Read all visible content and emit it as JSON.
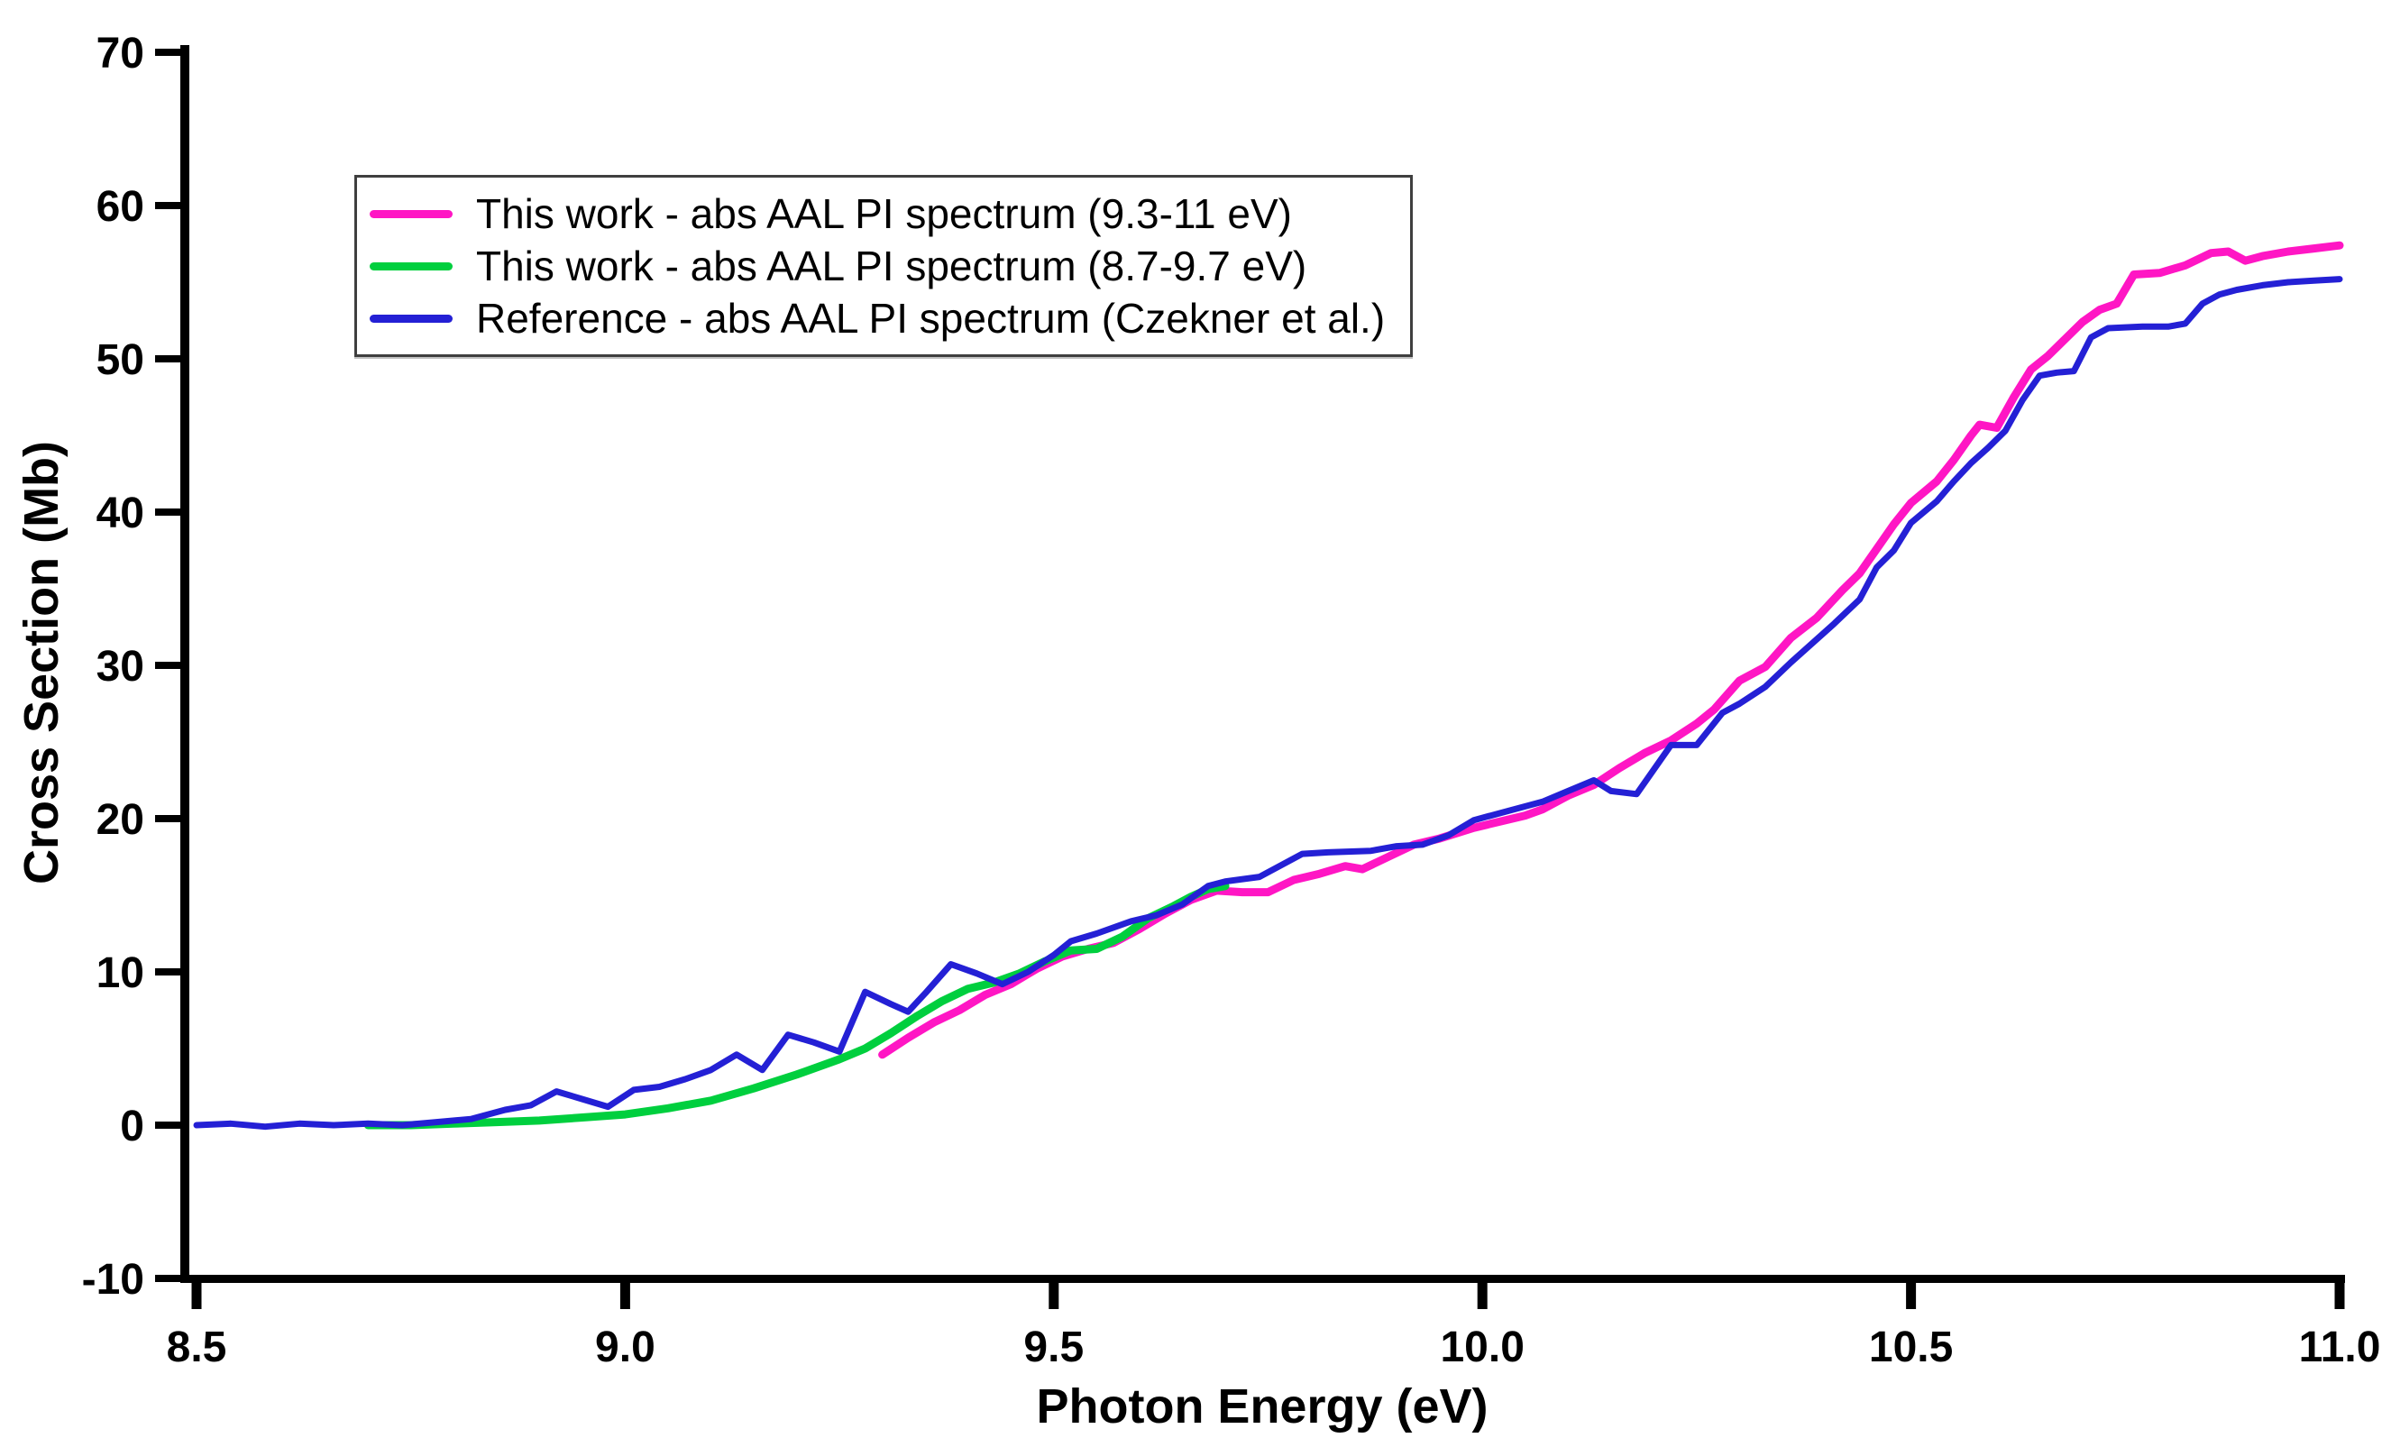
{
  "figure": {
    "background": "#ffffff",
    "axis_color": "#000000"
  },
  "chart_data": {
    "type": "line",
    "title": "",
    "xlabel": "Photon Energy (eV)",
    "ylabel": "Cross Section (Mb)",
    "xlim": [
      8.5,
      11.0
    ],
    "ylim": [
      -10,
      70
    ],
    "xticks": [
      8.5,
      9.0,
      9.5,
      10.0,
      10.5,
      11.0
    ],
    "yticks": [
      -10,
      0,
      10,
      20,
      30,
      40,
      50,
      60,
      70
    ],
    "grid": false,
    "legend_position": "upper-left",
    "series": [
      {
        "name": "This work - abs AAL PI spectrum (9.3-11 eV)",
        "color": "#ff16c4",
        "x": [
          9.3,
          9.33,
          9.36,
          9.39,
          9.42,
          9.45,
          9.48,
          9.51,
          9.54,
          9.57,
          9.6,
          9.63,
          9.66,
          9.69,
          9.72,
          9.75,
          9.78,
          9.81,
          9.84,
          9.86,
          9.89,
          9.92,
          9.95,
          9.99,
          10.02,
          10.05,
          10.07,
          10.1,
          10.13,
          10.16,
          10.19,
          10.22,
          10.25,
          10.27,
          10.3,
          10.33,
          10.36,
          10.39,
          10.42,
          10.44,
          10.46,
          10.48,
          10.5,
          10.53,
          10.55,
          10.57,
          10.58,
          10.6,
          10.62,
          10.64,
          10.66,
          10.68,
          10.7,
          10.72,
          10.74,
          10.76,
          10.79,
          10.82,
          10.85,
          10.87,
          10.89,
          10.91,
          10.94,
          10.97,
          11.0
        ],
        "y": [
          4.6,
          5.7,
          6.7,
          7.5,
          8.5,
          9.2,
          10.2,
          11.0,
          11.5,
          11.9,
          12.8,
          13.8,
          14.7,
          15.3,
          15.2,
          15.2,
          16.0,
          16.4,
          16.9,
          16.7,
          17.5,
          18.3,
          18.7,
          19.4,
          19.8,
          20.2,
          20.6,
          21.5,
          22.2,
          23.3,
          24.3,
          25.1,
          26.2,
          27.1,
          29.0,
          29.9,
          31.8,
          33.1,
          34.9,
          36.0,
          37.6,
          39.2,
          40.6,
          42.0,
          43.4,
          45.0,
          45.7,
          45.5,
          47.5,
          49.3,
          50.2,
          51.3,
          52.4,
          53.2,
          53.6,
          55.5,
          55.6,
          56.1,
          56.9,
          57.0,
          56.4,
          56.7,
          57.0,
          57.2,
          57.4
        ]
      },
      {
        "name": "This work - abs AAL PI spectrum (8.7-9.7 eV)",
        "color": "#00cf3e",
        "x": [
          8.7,
          8.75,
          8.8,
          8.85,
          8.9,
          8.95,
          9.0,
          9.05,
          9.1,
          9.15,
          9.2,
          9.25,
          9.28,
          9.31,
          9.34,
          9.37,
          9.4,
          9.43,
          9.46,
          9.49,
          9.52,
          9.55,
          9.58,
          9.61,
          9.64,
          9.66,
          9.68,
          9.7
        ],
        "y": [
          0.0,
          0.0,
          0.1,
          0.2,
          0.3,
          0.5,
          0.7,
          1.1,
          1.6,
          2.4,
          3.3,
          4.3,
          5.0,
          6.0,
          7.1,
          8.1,
          8.9,
          9.3,
          9.9,
          10.7,
          11.4,
          11.5,
          12.3,
          13.5,
          14.3,
          14.9,
          15.4,
          15.6
        ]
      },
      {
        "name": "Reference - abs AAL PI spectrum (Czekner et al.)",
        "color": "#2420d5",
        "x": [
          8.5,
          8.54,
          8.58,
          8.62,
          8.66,
          8.7,
          8.74,
          8.78,
          8.82,
          8.86,
          8.89,
          8.92,
          8.95,
          8.98,
          9.01,
          9.04,
          9.07,
          9.1,
          9.13,
          9.16,
          9.19,
          9.22,
          9.25,
          9.28,
          9.31,
          9.33,
          9.35,
          9.38,
          9.41,
          9.44,
          9.47,
          9.5,
          9.52,
          9.55,
          9.59,
          9.62,
          9.65,
          9.68,
          9.7,
          9.74,
          9.79,
          9.82,
          9.87,
          9.9,
          9.93,
          9.96,
          9.99,
          10.03,
          10.07,
          10.1,
          10.13,
          10.15,
          10.18,
          10.22,
          10.25,
          10.28,
          10.3,
          10.33,
          10.36,
          10.38,
          10.41,
          10.44,
          10.46,
          10.48,
          10.5,
          10.53,
          10.55,
          10.57,
          10.59,
          10.61,
          10.63,
          10.65,
          10.67,
          10.69,
          10.71,
          10.73,
          10.77,
          10.8,
          10.82,
          10.84,
          10.86,
          10.88,
          10.91,
          10.94,
          10.97,
          11.0
        ],
        "y": [
          0.0,
          0.1,
          -0.1,
          0.1,
          0.0,
          0.1,
          0.0,
          0.2,
          0.4,
          1.0,
          1.3,
          2.2,
          1.7,
          1.2,
          2.3,
          2.5,
          3.0,
          3.6,
          4.6,
          3.6,
          5.9,
          5.4,
          4.8,
          8.7,
          7.9,
          7.4,
          8.6,
          10.5,
          9.9,
          9.2,
          10.0,
          11.1,
          12.0,
          12.5,
          13.3,
          13.7,
          14.4,
          15.6,
          15.9,
          16.2,
          17.7,
          17.8,
          17.9,
          18.2,
          18.3,
          18.9,
          19.9,
          20.5,
          21.1,
          21.8,
          22.5,
          21.8,
          21.6,
          24.8,
          24.8,
          26.9,
          27.5,
          28.6,
          30.2,
          31.2,
          32.7,
          34.3,
          36.4,
          37.5,
          39.3,
          40.7,
          42.0,
          43.2,
          44.2,
          45.3,
          47.3,
          48.9,
          49.1,
          49.2,
          51.4,
          52.0,
          52.1,
          52.1,
          52.3,
          53.6,
          54.2,
          54.5,
          54.8,
          55.0,
          55.1,
          55.2
        ]
      }
    ]
  }
}
